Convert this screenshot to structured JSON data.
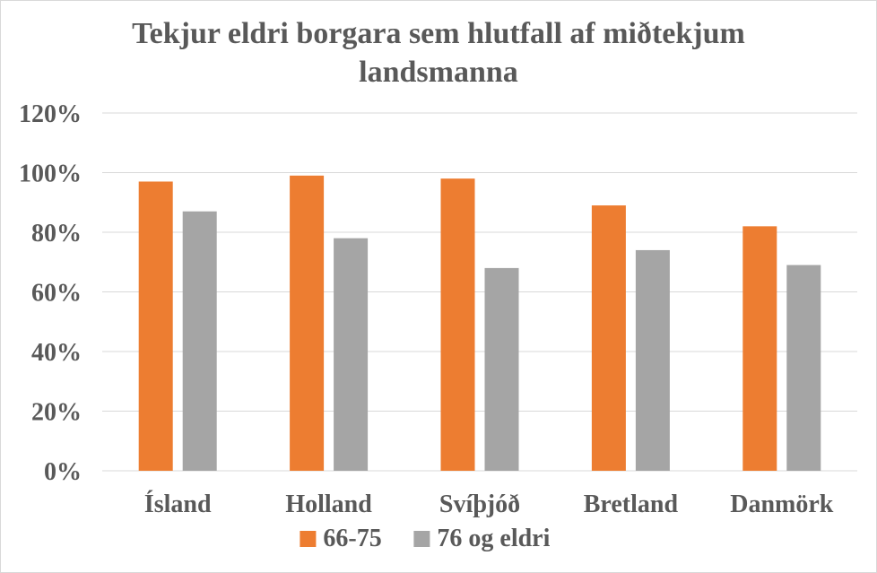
{
  "chart_data": {
    "type": "bar",
    "title_lines": [
      "Tekjur eldri borgara sem hlutfall af miðtekjum",
      "landsmanna"
    ],
    "categories": [
      "Ísland",
      "Holland",
      "Svíþjóð",
      "Bretland",
      "Danmörk"
    ],
    "series": [
      {
        "name": "66-75",
        "color": "#ed7d31",
        "values": [
          97,
          99,
          98,
          89,
          82
        ]
      },
      {
        "name": "76 og eldri",
        "color": "#a5a5a5",
        "values": [
          87,
          78,
          68,
          74,
          69
        ]
      }
    ],
    "y_ticks": [
      "0%",
      "20%",
      "40%",
      "60%",
      "80%",
      "100%",
      "120%"
    ],
    "ylim": [
      0,
      120
    ],
    "y_step": 20,
    "grid": true,
    "gridline_color": "#d9d9d9",
    "legend_position": "bottom"
  }
}
